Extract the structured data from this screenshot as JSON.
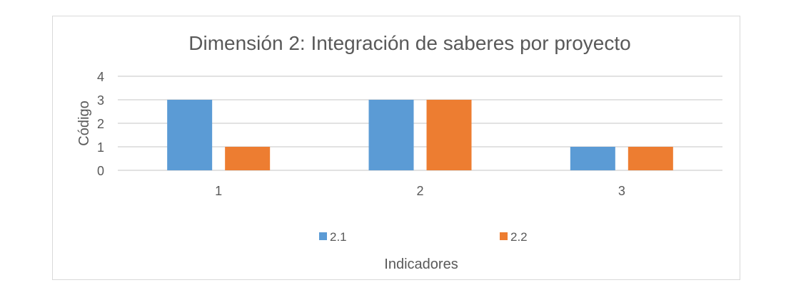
{
  "chart_data": {
    "type": "bar",
    "title": "Dimensión 2: Integración de saberes por proyecto",
    "xlabel": "Indicadores",
    "ylabel": "Código",
    "categories": [
      "1",
      "2",
      "3"
    ],
    "series": [
      {
        "name": "2.1",
        "values": [
          3,
          3,
          1
        ],
        "color": "#5B9BD5"
      },
      {
        "name": "2.2",
        "values": [
          1,
          3,
          1
        ],
        "color": "#ED7D31"
      }
    ],
    "ylim": [
      0,
      4
    ],
    "yticks": [
      "0",
      "1",
      "2",
      "3",
      "4"
    ],
    "grid": true,
    "legend": "bottom"
  }
}
